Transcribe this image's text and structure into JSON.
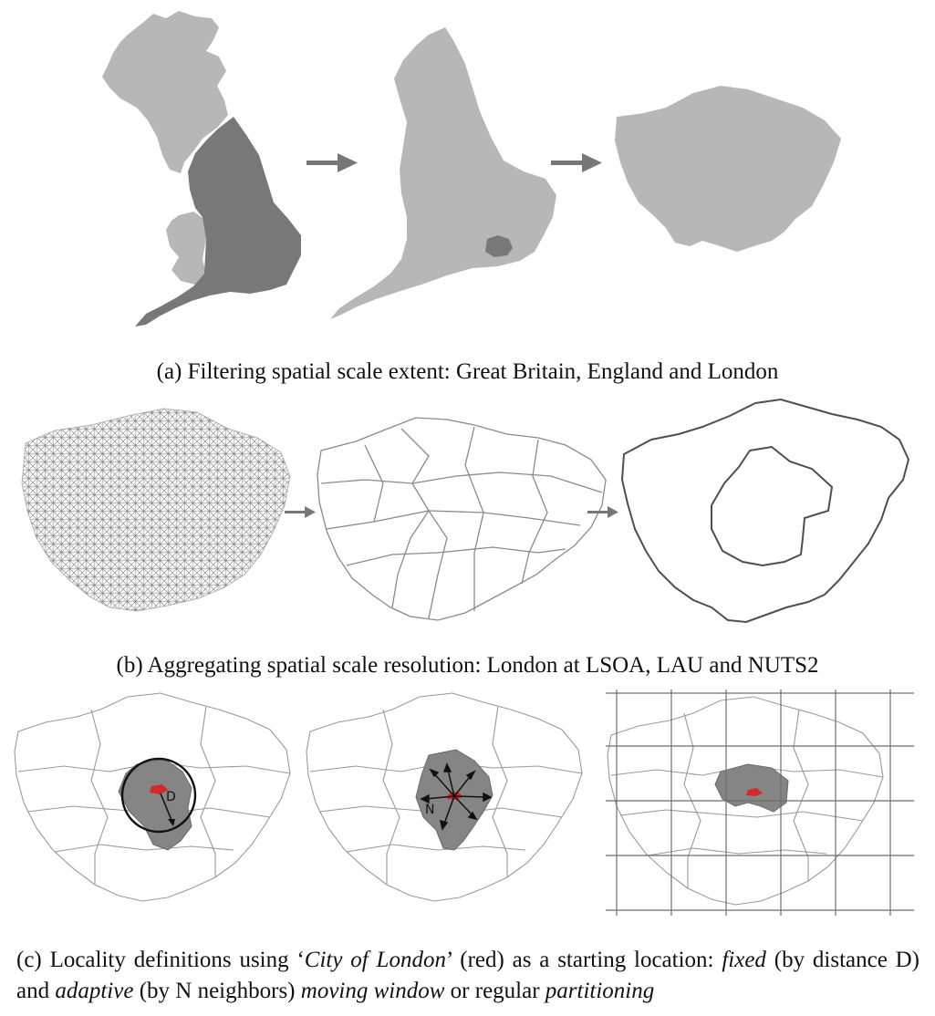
{
  "colors": {
    "light_region": "#b7b7b7",
    "dark_region": "#787878",
    "arrow": "#777777",
    "highlight": "#d22a2a",
    "outline": "#9a9a9a"
  },
  "panel_a": {
    "caption": "(a) Filtering spatial scale extent: Great Britain, England and London"
  },
  "panel_b": {
    "caption": "(b) Aggregating spatial scale resolution: London at LSOA, LAU and NUTS2"
  },
  "panel_c": {
    "label_distance": "D",
    "label_neighbors": "N",
    "caption_parts": [
      {
        "text": "(c) Locality definitions using ‘",
        "italic": false
      },
      {
        "text": "City of London",
        "italic": true
      },
      {
        "text": "’ (red) as a starting location: ",
        "italic": false
      },
      {
        "text": "fixed",
        "italic": true
      },
      {
        "text": " (by distance D) and ",
        "italic": false
      },
      {
        "text": "adaptive",
        "italic": true
      },
      {
        "text": " (by N neighbors) ",
        "italic": false
      },
      {
        "text": "moving window",
        "italic": true
      },
      {
        "text": " or regular ",
        "italic": false
      },
      {
        "text": "partitioning",
        "italic": true
      }
    ]
  }
}
